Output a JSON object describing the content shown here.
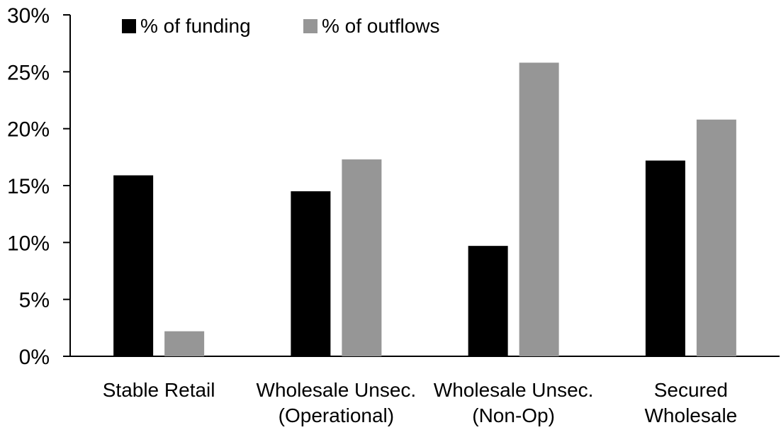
{
  "chart_data": {
    "type": "bar",
    "title": "",
    "xlabel": "",
    "ylabel": "",
    "ylim": [
      0,
      30
    ],
    "yticks": [
      "0%",
      "5%",
      "10%",
      "15%",
      "20%",
      "25%",
      "30%"
    ],
    "grid": false,
    "legend_position": "top",
    "categories": [
      [
        "Stable Retail"
      ],
      [
        "Wholesale Unsec.",
        "(Operational)"
      ],
      [
        "Wholesale Unsec.",
        "(Non-Op)"
      ],
      [
        "Secured",
        "Wholesale"
      ]
    ],
    "series": [
      {
        "name": "% of funding",
        "color": "#000000",
        "values": [
          15.9,
          14.5,
          9.7,
          17.2
        ]
      },
      {
        "name": "% of outflows",
        "color": "#969696",
        "values": [
          2.2,
          17.3,
          25.8,
          20.8
        ]
      }
    ]
  }
}
